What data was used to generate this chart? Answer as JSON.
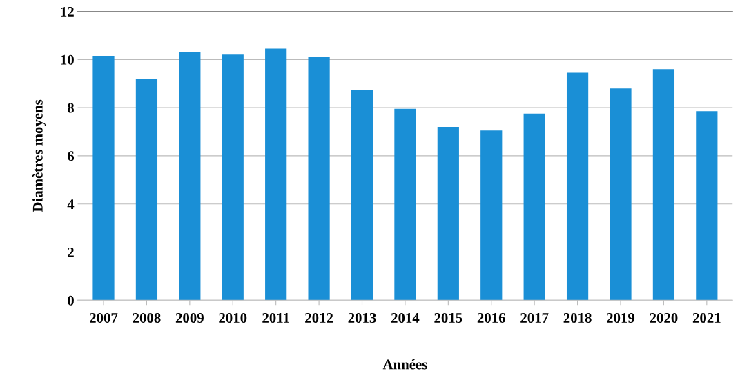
{
  "chart_data": {
    "type": "bar",
    "xlabel": "Années",
    "ylabel": "Diamètres moyens",
    "categories": [
      "2007",
      "2008",
      "2009",
      "2010",
      "2011",
      "2012",
      "2013",
      "2014",
      "2015",
      "2016",
      "2017",
      "2018",
      "2019",
      "2020",
      "2021"
    ],
    "values": [
      10.15,
      9.2,
      10.3,
      10.2,
      10.45,
      10.1,
      8.75,
      7.95,
      7.2,
      7.05,
      7.75,
      9.45,
      8.8,
      9.6,
      7.85
    ],
    "color": "#1a8fd6",
    "ylim": [
      0,
      12
    ],
    "yticks": [
      0,
      2,
      4,
      6,
      8,
      10,
      12
    ],
    "grid": "y",
    "legend": false
  }
}
